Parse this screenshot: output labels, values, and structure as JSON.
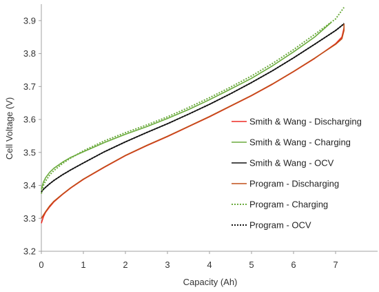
{
  "chart_data": {
    "type": "line",
    "xlabel": "Capacity (Ah)",
    "ylabel": "Cell Voltage (V)",
    "xlim": [
      0,
      8
    ],
    "ylim": [
      3.2,
      3.95
    ],
    "xticks": [
      "0",
      "1",
      "2",
      "3",
      "4",
      "5",
      "6",
      "7"
    ],
    "yticks": [
      "3.2",
      "3.3",
      "3.4",
      "3.5",
      "3.6",
      "3.7",
      "3.8",
      "3.9"
    ],
    "grid": false,
    "legend_position": "right",
    "series": [
      {
        "name": "Smith & Wang - Discharging",
        "color": "#ee2a24",
        "dash": "solid",
        "x": [
          0,
          0.05,
          0.1,
          0.2,
          0.3,
          0.5,
          0.7,
          1.0,
          1.5,
          2.0,
          2.5,
          3.0,
          3.5,
          4.0,
          4.5,
          5.0,
          5.5,
          6.0,
          6.5,
          7.0,
          7.15,
          7.2
        ],
        "y": [
          3.285,
          3.305,
          3.318,
          3.335,
          3.35,
          3.372,
          3.392,
          3.418,
          3.455,
          3.49,
          3.52,
          3.548,
          3.578,
          3.608,
          3.64,
          3.672,
          3.707,
          3.745,
          3.785,
          3.83,
          3.85,
          3.878
        ]
      },
      {
        "name": "Smith & Wang - Charging",
        "color": "#6aaa3c",
        "dash": "solid",
        "x": [
          0,
          0.05,
          0.1,
          0.2,
          0.3,
          0.5,
          0.7,
          1.0,
          1.5,
          2.0,
          2.5,
          3.0,
          3.5,
          4.0,
          4.5,
          5.0,
          5.5,
          6.0,
          6.5,
          6.9
        ],
        "y": [
          3.388,
          3.41,
          3.423,
          3.44,
          3.452,
          3.47,
          3.485,
          3.502,
          3.53,
          3.555,
          3.578,
          3.603,
          3.63,
          3.66,
          3.692,
          3.725,
          3.763,
          3.805,
          3.85,
          3.895
        ]
      },
      {
        "name": "Smith & Wang - OCV",
        "color": "#111111",
        "dash": "solid",
        "x": [
          0,
          0.05,
          0.1,
          0.2,
          0.3,
          0.5,
          0.7,
          1.0,
          1.5,
          2.0,
          2.5,
          3.0,
          3.5,
          4.0,
          4.5,
          5.0,
          5.5,
          6.0,
          6.5,
          7.0,
          7.15,
          7.2
        ],
        "y": [
          3.38,
          3.388,
          3.394,
          3.405,
          3.415,
          3.432,
          3.447,
          3.468,
          3.502,
          3.532,
          3.56,
          3.587,
          3.616,
          3.646,
          3.678,
          3.712,
          3.748,
          3.787,
          3.828,
          3.87,
          3.885,
          3.89
        ]
      },
      {
        "name": "Program - Discharging",
        "color": "#c04e18",
        "dash": "solid",
        "x": [
          0,
          0.05,
          0.1,
          0.2,
          0.3,
          0.5,
          0.7,
          1.0,
          1.5,
          2.0,
          2.5,
          3.0,
          3.5,
          4.0,
          4.5,
          5.0,
          5.5,
          6.0,
          6.5,
          7.0,
          7.15,
          7.2,
          7.2
        ],
        "y": [
          3.3,
          3.31,
          3.32,
          3.338,
          3.352,
          3.373,
          3.393,
          3.419,
          3.456,
          3.491,
          3.521,
          3.549,
          3.579,
          3.609,
          3.641,
          3.673,
          3.708,
          3.746,
          3.786,
          3.828,
          3.845,
          3.87,
          3.89
        ]
      },
      {
        "name": "Program - Charging",
        "color": "#6aaa3c",
        "dash": "dotted",
        "x": [
          0,
          0.05,
          0.1,
          0.2,
          0.3,
          0.5,
          0.7,
          1.0,
          1.5,
          2.0,
          2.5,
          3.0,
          3.5,
          4.0,
          4.5,
          5.0,
          5.5,
          6.0,
          6.5,
          7.0,
          7.2
        ],
        "y": [
          3.375,
          3.4,
          3.413,
          3.432,
          3.445,
          3.466,
          3.483,
          3.505,
          3.535,
          3.56,
          3.583,
          3.608,
          3.636,
          3.666,
          3.698,
          3.732,
          3.77,
          3.812,
          3.858,
          3.905,
          3.94
        ]
      },
      {
        "name": "Program - OCV",
        "color": "#111111",
        "dash": "dotted",
        "x": [
          0,
          0.05,
          0.1,
          0.2,
          0.3,
          0.5,
          0.7,
          1.0,
          1.5,
          2.0,
          2.5,
          3.0,
          3.5,
          4.0,
          4.5,
          5.0,
          5.5,
          6.0,
          6.5,
          7.0,
          7.15,
          7.2
        ],
        "y": [
          3.38,
          3.388,
          3.394,
          3.405,
          3.415,
          3.432,
          3.447,
          3.468,
          3.502,
          3.532,
          3.56,
          3.587,
          3.616,
          3.646,
          3.678,
          3.712,
          3.748,
          3.787,
          3.828,
          3.87,
          3.885,
          3.892
        ]
      }
    ]
  }
}
